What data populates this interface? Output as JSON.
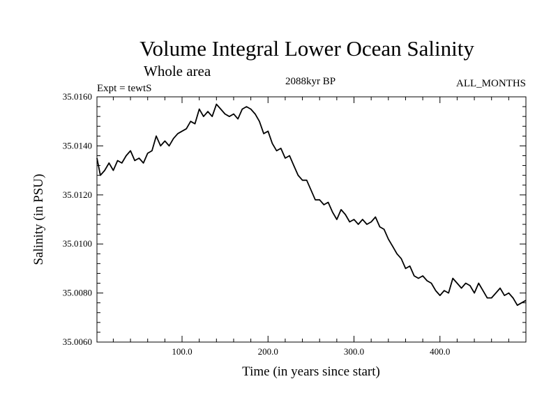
{
  "chart_data": {
    "type": "line",
    "title": "Volume Integral Lower Ocean Salinity",
    "subtitle": "Whole area",
    "experiment_label": "Expt = tewtS",
    "period_label": "2088kyr BP",
    "months_label": "ALL_MONTHS",
    "xlabel": "Time (in years since start)",
    "ylabel": "Salinity (in PSU)",
    "xlim": [
      1,
      500
    ],
    "ylim": [
      35.006,
      35.016
    ],
    "xticks": [
      100,
      200,
      300,
      400
    ],
    "xtick_labels": [
      "100.0",
      "200.0",
      "300.0",
      "400.0"
    ],
    "yticks": [
      35.006,
      35.008,
      35.01,
      35.012,
      35.014,
      35.016
    ],
    "ytick_labels": [
      "35.0060",
      "35.0080",
      "35.0100",
      "35.0120",
      "35.0140",
      "35.0160"
    ],
    "grid": false,
    "series": [
      {
        "name": "Salinity",
        "x": [
          1,
          5,
          10,
          15,
          20,
          25,
          30,
          35,
          40,
          45,
          50,
          55,
          60,
          65,
          70,
          75,
          80,
          85,
          90,
          95,
          100,
          105,
          110,
          115,
          120,
          125,
          130,
          135,
          140,
          145,
          150,
          155,
          160,
          165,
          170,
          175,
          180,
          185,
          190,
          195,
          200,
          205,
          210,
          215,
          220,
          225,
          230,
          235,
          240,
          245,
          250,
          255,
          260,
          265,
          270,
          275,
          280,
          285,
          290,
          295,
          300,
          305,
          310,
          315,
          320,
          325,
          330,
          335,
          340,
          345,
          350,
          355,
          360,
          365,
          370,
          375,
          380,
          385,
          390,
          395,
          400,
          405,
          410,
          415,
          420,
          425,
          430,
          435,
          440,
          445,
          450,
          455,
          460,
          465,
          470,
          475,
          480,
          485,
          490,
          495,
          500
        ],
        "y": [
          35.0135,
          35.0128,
          35.013,
          35.0133,
          35.013,
          35.0134,
          35.0133,
          35.0136,
          35.0138,
          35.0134,
          35.0135,
          35.0133,
          35.0137,
          35.0138,
          35.0144,
          35.014,
          35.0142,
          35.014,
          35.0143,
          35.0145,
          35.0146,
          35.0147,
          35.015,
          35.0149,
          35.0155,
          35.0152,
          35.0154,
          35.0152,
          35.0157,
          35.0155,
          35.0153,
          35.0152,
          35.0153,
          35.0151,
          35.0155,
          35.0156,
          35.0155,
          35.0153,
          35.015,
          35.0145,
          35.0146,
          35.0141,
          35.0138,
          35.0139,
          35.0135,
          35.0136,
          35.0132,
          35.0128,
          35.0126,
          35.0126,
          35.0122,
          35.0118,
          35.0118,
          35.0116,
          35.0117,
          35.0113,
          35.011,
          35.0114,
          35.0112,
          35.0109,
          35.011,
          35.0108,
          35.011,
          35.0108,
          35.0109,
          35.0111,
          35.0107,
          35.0106,
          35.0102,
          35.0099,
          35.0096,
          35.0094,
          35.009,
          35.0091,
          35.0087,
          35.0086,
          35.0087,
          35.0085,
          35.0084,
          35.0081,
          35.0079,
          35.0081,
          35.008,
          35.0086,
          35.0084,
          35.0082,
          35.0084,
          35.0083,
          35.008,
          35.0084,
          35.0081,
          35.0078,
          35.0078,
          35.008,
          35.0082,
          35.0079,
          35.008,
          35.0078,
          35.0075,
          35.0076,
          35.0077
        ],
        "color": "#000000"
      }
    ]
  }
}
